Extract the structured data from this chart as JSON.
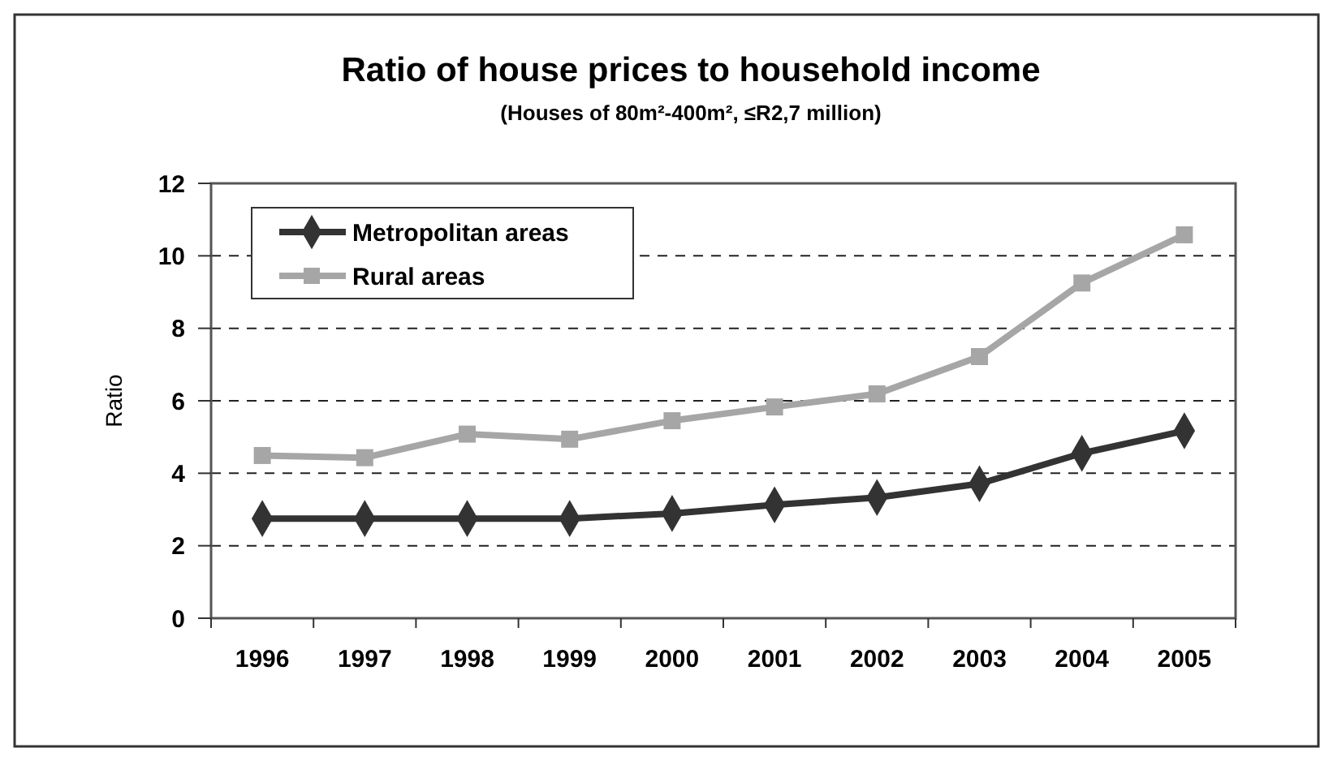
{
  "chart_data": {
    "type": "line",
    "title": "Ratio of house prices to household income",
    "subtitle": "(Houses of 80m²-400m², ≤R2,7 million)",
    "ylabel": "Ratio",
    "categories": [
      "1996",
      "1997",
      "1998",
      "1999",
      "2000",
      "2001",
      "2002",
      "2003",
      "2004",
      "2005"
    ],
    "series": [
      {
        "name": "Metropolitan areas",
        "color": "#333333",
        "marker": "diamond",
        "values": [
          2.75,
          2.75,
          2.75,
          2.75,
          2.89,
          3.13,
          3.33,
          3.71,
          4.55,
          5.17
        ]
      },
      {
        "name": "Rural areas",
        "color": "#a6a6a6",
        "marker": "square",
        "values": [
          4.49,
          4.43,
          5.08,
          4.94,
          5.45,
          5.83,
          6.19,
          7.22,
          9.25,
          10.58
        ]
      }
    ],
    "ylim": [
      0,
      12
    ],
    "yticks": [
      0,
      2,
      4,
      6,
      8,
      10,
      12
    ],
    "grid": "y",
    "legend": "top left",
    "line_style": "solid"
  }
}
